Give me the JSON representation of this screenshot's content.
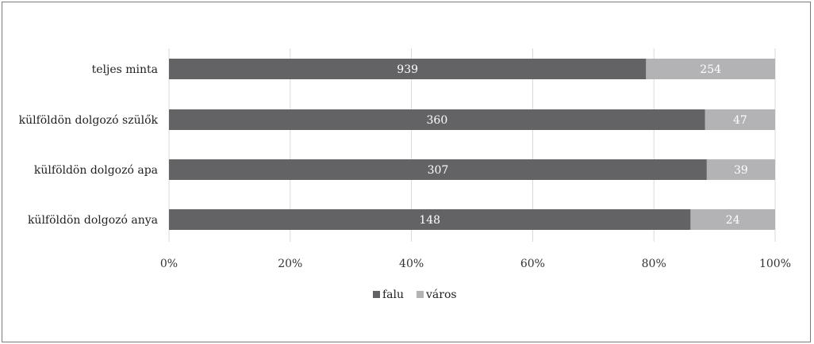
{
  "chart_data": {
    "type": "bar",
    "orientation": "horizontal",
    "stacked": "percent",
    "categories": [
      "teljes minta",
      "külföldön dolgozó szülők",
      "külföldön dolgozó apa",
      "külföldön dolgozó anya"
    ],
    "series": [
      {
        "name": "falu",
        "values": [
          939,
          360,
          307,
          148
        ],
        "color": "#636366"
      },
      {
        "name": "város",
        "values": [
          254,
          47,
          39,
          24
        ],
        "color": "#b3b3b5"
      }
    ],
    "x_ticks": [
      "0%",
      "20%",
      "40%",
      "60%",
      "80%",
      "100%"
    ],
    "xlim": [
      0,
      100
    ],
    "grid": "vertical",
    "gridline_color": "#d9d9d9",
    "legend_position": "bottom"
  }
}
